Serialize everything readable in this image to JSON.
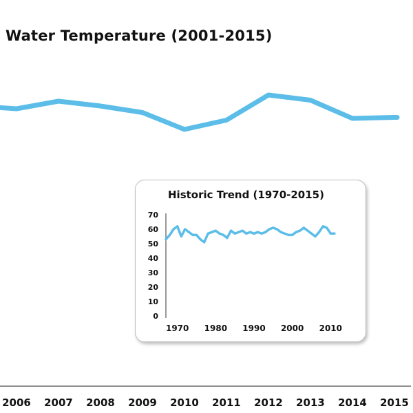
{
  "chart_data": [
    {
      "type": "line",
      "title": "Water Temperature (2001-2015)",
      "xlabel": "",
      "ylabel": "",
      "x": [
        "2006",
        "2007",
        "2008",
        "2009",
        "2010",
        "2011",
        "2012",
        "2013",
        "2014",
        "2015"
      ],
      "series": [
        {
          "values": [
            63.4,
            65.6,
            64.2,
            62.3,
            57.4,
            60.1,
            67.4,
            65.9,
            60.6,
            60.9
          ]
        }
      ],
      "ylim": [
        45,
        75
      ],
      "grid": false,
      "line_color": "#5bbde8"
    },
    {
      "type": "line",
      "title": "Historic Trend (1970-2015)",
      "xlabel": "",
      "ylabel": "",
      "xlim": [
        1967,
        2013
      ],
      "xticks": [
        "1970",
        "1980",
        "1990",
        "2000",
        "2010"
      ],
      "yticks": [
        "0",
        "10",
        "20",
        "30",
        "40",
        "50",
        "60",
        "70"
      ],
      "ylim": [
        0,
        70
      ],
      "series": [
        {
          "x": [
            1967,
            1968,
            1969,
            1970,
            1971,
            1972,
            1973,
            1974,
            1975,
            1976,
            1977,
            1978,
            1979,
            1980,
            1981,
            1982,
            1983,
            1984,
            1985,
            1986,
            1987,
            1988,
            1989,
            1990,
            1991,
            1992,
            1993,
            1994,
            1995,
            1996,
            1997,
            1998,
            1999,
            2000,
            2001,
            2002,
            2003,
            2004,
            2005,
            2006,
            2007,
            2008,
            2009,
            2010,
            2011
          ],
          "values": [
            53,
            56,
            60,
            62,
            55,
            60,
            58,
            56,
            56,
            53,
            51,
            57,
            58,
            59,
            57,
            56,
            54,
            59,
            57,
            58,
            59,
            57,
            58,
            57,
            58,
            57,
            58,
            60,
            61,
            60,
            58,
            57,
            56,
            56,
            58,
            59,
            61,
            59,
            57,
            55,
            58,
            62,
            61,
            57,
            57
          ]
        }
      ],
      "grid": false,
      "line_color": "#5bbde8"
    }
  ]
}
